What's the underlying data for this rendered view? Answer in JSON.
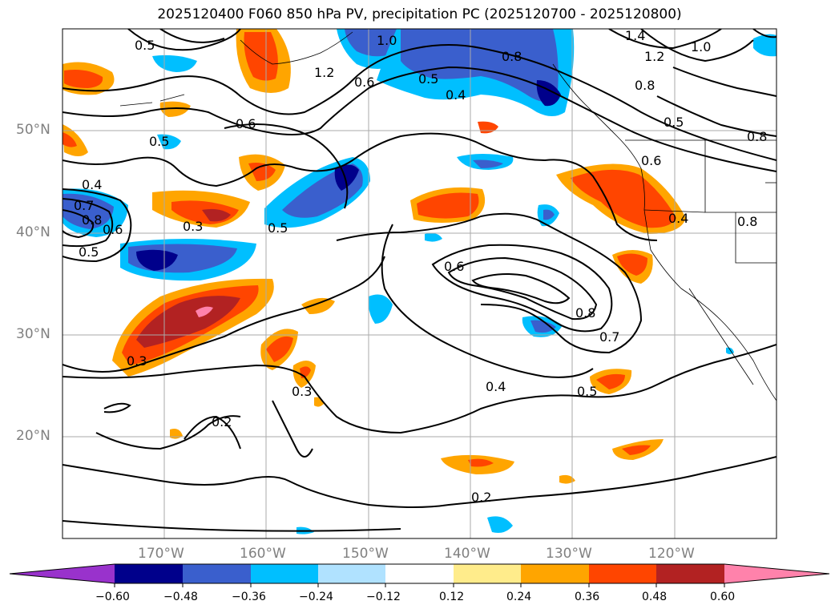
{
  "title": "2025120400 F060 850 hPa PV, precipitation PC (2025120700 - 2025120800)",
  "lat_labels": [
    "50°N",
    "40°N",
    "30°N",
    "20°N"
  ],
  "lon_labels": [
    "170°W",
    "160°W",
    "150°W",
    "140°W",
    "130°W",
    "120°W"
  ],
  "colorbar": {
    "ticks": [
      "−0.60",
      "−0.48",
      "−0.36",
      "−0.24",
      "−0.12",
      "0.12",
      "0.24",
      "0.36",
      "0.48",
      "0.60"
    ],
    "colors": [
      "#9932cc",
      "#00008b",
      "#3a5fcd",
      "#00bfff",
      "#b0e2ff",
      "#ffffff",
      "#ffec8b",
      "#ffa500",
      "#ff4500",
      "#b22222",
      "#ff82ab"
    ]
  },
  "contour_labels": [
    "0.5",
    "1.0",
    "0.6",
    "0.5",
    "0.4",
    "1.2",
    "1.4",
    "1.2",
    "1.0",
    "0.8",
    "0.8",
    "0.5",
    "0.8",
    "0.6",
    "0.6",
    "0.5",
    "0.4",
    "0.7",
    "0.8",
    "0.6",
    "0.5",
    "0.3",
    "0.5",
    "0.4",
    "0.6",
    "0.8",
    "0.7",
    "0.4",
    "0.5",
    "0.3",
    "0.3",
    "0.2",
    "0.2",
    "0.8"
  ]
}
